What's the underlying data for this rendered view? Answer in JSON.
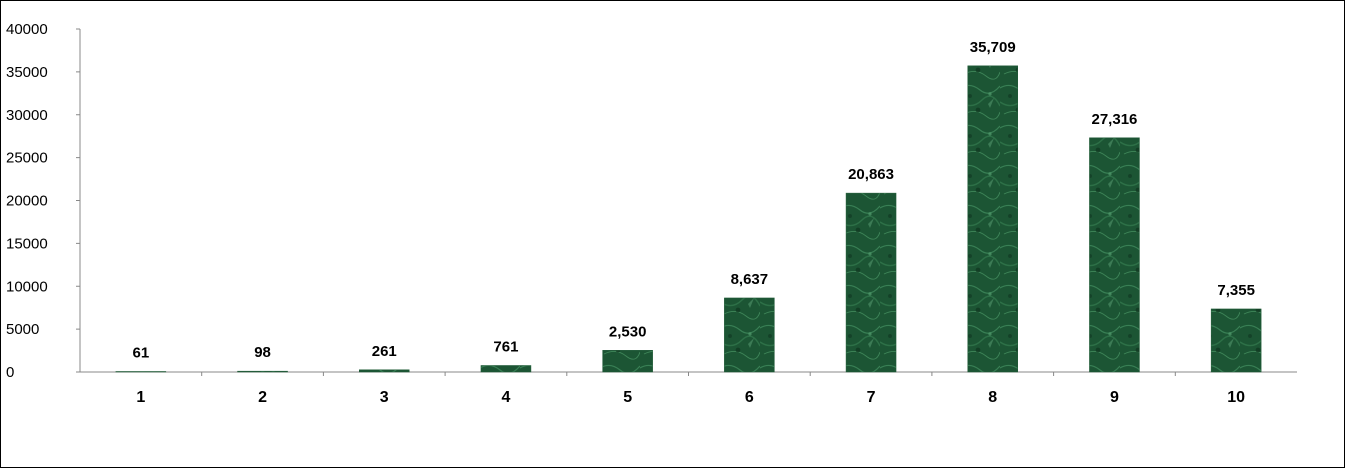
{
  "chart_data": {
    "type": "bar",
    "categories": [
      "1",
      "2",
      "3",
      "4",
      "5",
      "6",
      "7",
      "8",
      "9",
      "10"
    ],
    "values": [
      61,
      98,
      261,
      761,
      2530,
      8637,
      20863,
      35709,
      27316,
      7355
    ],
    "data_labels": [
      "61",
      "98",
      "261",
      "761",
      "2,530",
      "8,637",
      "20,863",
      "35,709",
      "27,316",
      "7,355"
    ],
    "y_ticks": [
      "0",
      "5000",
      "10000",
      "15000",
      "20000",
      "25000",
      "30000",
      "35000",
      "40000"
    ],
    "ylim": [
      0,
      40000
    ],
    "grid": false,
    "legend": "none",
    "bar_color": "#1f5a36"
  }
}
